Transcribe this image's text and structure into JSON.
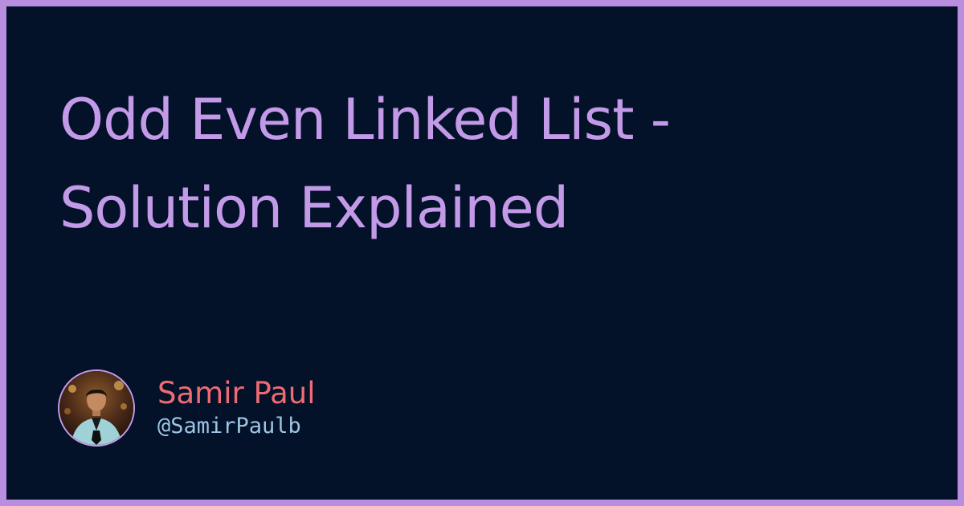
{
  "post": {
    "title_line1": "Odd Even Linked List -",
    "title_line2": "Solution Explained"
  },
  "author": {
    "name": "Samir Paul",
    "handle": "@SamirPaulb",
    "avatar_icon": "author-avatar"
  },
  "colors": {
    "frame": "#b98ee0",
    "background": "#031129",
    "title": "#c39ae8",
    "author_name": "#ee6b73",
    "author_handle": "#9ec5e4"
  }
}
